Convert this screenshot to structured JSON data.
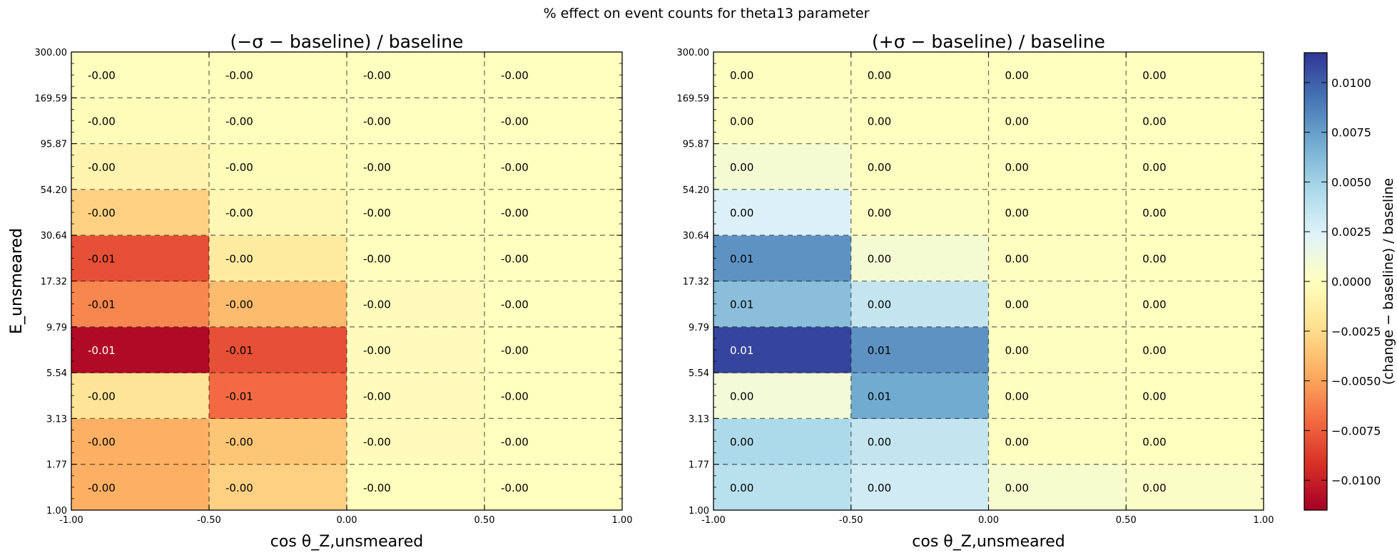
{
  "figure": {
    "title": "% effect on event counts for theta13 parameter"
  },
  "chart_data": [
    {
      "type": "heatmap",
      "title": "(−σ − baseline) / baseline",
      "xlabel": "cos θ_Z,unsmeared",
      "ylabel": "E_unsmeared",
      "x_edges": [
        -1.0,
        -0.5,
        0.0,
        0.5,
        1.0
      ],
      "x_tick_labels": [
        "-1.00",
        "-0.50",
        "0.00",
        "0.50",
        "1.00"
      ],
      "y_edges": [
        1.0,
        1.77,
        3.13,
        5.54,
        9.79,
        17.32,
        30.64,
        54.2,
        95.87,
        169.59,
        300.0
      ],
      "y_tick_labels": [
        "1.00",
        "1.77",
        "3.13",
        "5.54",
        "9.79",
        "17.32",
        "30.64",
        "54.20",
        "95.87",
        "169.59",
        "300.00"
      ],
      "y_scale": "log",
      "grid": true,
      "values": [
        [
          -0.0045,
          -0.003,
          -0.0001,
          0.0
        ],
        [
          -0.0045,
          -0.0035,
          -0.0002,
          0.0
        ],
        [
          -0.002,
          -0.007,
          -0.0002,
          0.0
        ],
        [
          -0.011,
          -0.008,
          -0.0002,
          0.0
        ],
        [
          -0.006,
          -0.004,
          -0.0002,
          0.0
        ],
        [
          -0.008,
          -0.0015,
          -0.0001,
          0.0
        ],
        [
          -0.003,
          -0.0006,
          -0.0001,
          0.0
        ],
        [
          -0.0008,
          -0.0003,
          -0.0001,
          0.0
        ],
        [
          -0.0003,
          -0.0001,
          0.0,
          0.0
        ],
        [
          -0.0001,
          -0.0001,
          0.0,
          0.0
        ]
      ],
      "value_labels": [
        [
          "-0.00",
          "-0.00",
          "-0.00",
          "-0.00"
        ],
        [
          "-0.00",
          "-0.00",
          "-0.00",
          "-0.00"
        ],
        [
          "-0.00",
          "-0.01",
          "-0.00",
          "-0.00"
        ],
        [
          "-0.01",
          "-0.01",
          "-0.00",
          "-0.00"
        ],
        [
          "-0.01",
          "-0.00",
          "-0.00",
          "-0.00"
        ],
        [
          "-0.01",
          "-0.00",
          "-0.00",
          "-0.00"
        ],
        [
          "-0.00",
          "-0.00",
          "-0.00",
          "-0.00"
        ],
        [
          "-0.00",
          "-0.00",
          "-0.00",
          "-0.00"
        ],
        [
          "-0.00",
          "-0.00",
          "-0.00",
          "-0.00"
        ],
        [
          "-0.00",
          "-0.00",
          "-0.00",
          "-0.00"
        ]
      ]
    },
    {
      "type": "heatmap",
      "title": "(+σ − baseline) / baseline",
      "xlabel": "cos θ_Z,unsmeared",
      "ylabel": "E_unsmeared",
      "x_edges": [
        -1.0,
        -0.5,
        0.0,
        0.5,
        1.0
      ],
      "x_tick_labels": [
        "-1.00",
        "-0.50",
        "0.00",
        "0.50",
        "1.00"
      ],
      "y_edges": [
        1.0,
        1.77,
        3.13,
        5.54,
        9.79,
        17.32,
        30.64,
        54.2,
        95.87,
        169.59,
        300.0
      ],
      "y_tick_labels": [
        "1.00",
        "1.77",
        "3.13",
        "5.54",
        "9.79",
        "17.32",
        "30.64",
        "54.20",
        "95.87",
        "169.59",
        "300.00"
      ],
      "y_scale": "log",
      "grid": true,
      "values": [
        [
          0.004,
          0.003,
          0.0006,
          0.0003
        ],
        [
          0.0045,
          0.0035,
          0.0001,
          0.0
        ],
        [
          0.001,
          0.007,
          0.0001,
          0.0
        ],
        [
          0.011,
          0.008,
          0.0001,
          0.0
        ],
        [
          0.006,
          0.0035,
          0.0001,
          0.0
        ],
        [
          0.008,
          0.0008,
          0.0001,
          0.0
        ],
        [
          0.0025,
          0.0002,
          0.0,
          0.0
        ],
        [
          0.0008,
          0.0001,
          0.0,
          0.0
        ],
        [
          0.0002,
          0.0,
          0.0,
          0.0
        ],
        [
          0.0001,
          0.0,
          0.0,
          0.0
        ]
      ],
      "value_labels": [
        [
          "0.00",
          "0.00",
          "0.00",
          "0.00"
        ],
        [
          "0.00",
          "0.00",
          "0.00",
          "0.00"
        ],
        [
          "0.00",
          "0.01",
          "0.00",
          "0.00"
        ],
        [
          "0.01",
          "0.01",
          "0.00",
          "0.00"
        ],
        [
          "0.01",
          "0.00",
          "0.00",
          "0.00"
        ],
        [
          "0.01",
          "0.00",
          "0.00",
          "0.00"
        ],
        [
          "0.00",
          "0.00",
          "0.00",
          "0.00"
        ],
        [
          "0.00",
          "0.00",
          "0.00",
          "0.00"
        ],
        [
          "0.00",
          "0.00",
          "0.00",
          "0.00"
        ],
        [
          "0.00",
          "0.00",
          "0.00",
          "0.00"
        ]
      ]
    }
  ],
  "colorbar": {
    "label": "(change − baseline) / baseline",
    "range": [
      -0.0115,
      0.0115
    ],
    "ticks": [
      0.01,
      0.0075,
      0.005,
      0.0025,
      0.0,
      -0.0025,
      -0.005,
      -0.0075,
      -0.01
    ],
    "tick_labels": [
      "0.0100",
      "0.0075",
      "0.0050",
      "0.0025",
      "0.0000",
      "−0.0025",
      "−0.0050",
      "−0.0075",
      "−0.0100"
    ],
    "colormap": "RdYlBu",
    "colormap_stops": [
      "#a50026",
      "#d73027",
      "#f46d43",
      "#fdae61",
      "#fee090",
      "#ffffbf",
      "#e0f3f8",
      "#abd9e9",
      "#74add1",
      "#4575b4",
      "#313695"
    ]
  }
}
